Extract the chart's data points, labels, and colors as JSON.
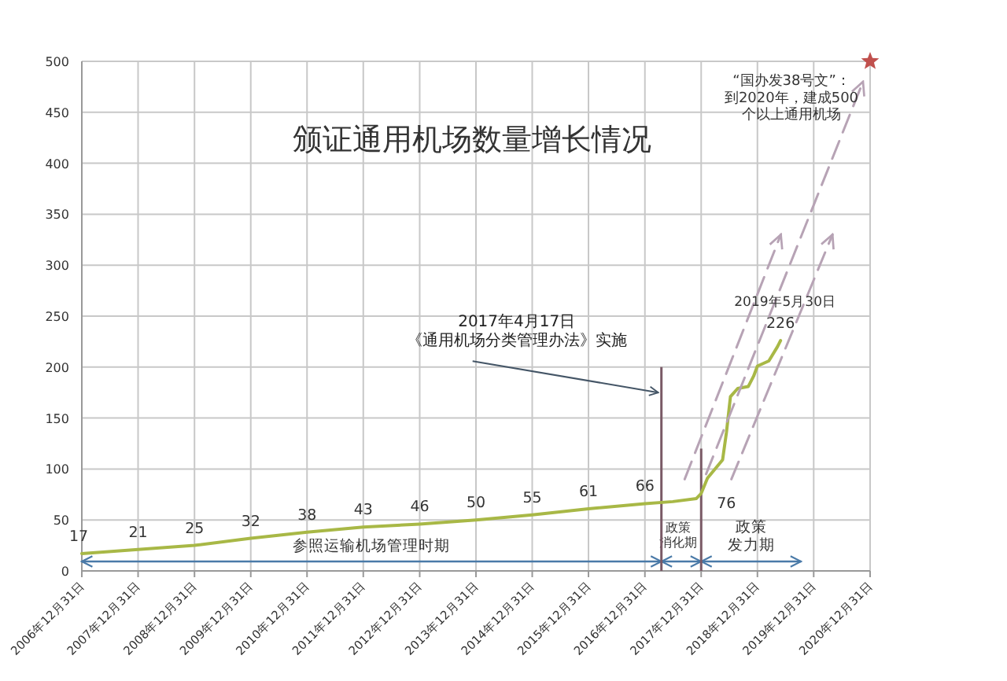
{
  "chart_data": {
    "type": "line",
    "title": "颁证通用机场数量增长情况",
    "x": [
      "2006-12-31",
      "2007-12-31",
      "2008-12-31",
      "2009-12-31",
      "2010-12-31",
      "2011-12-31",
      "2012-12-31",
      "2013-12-31",
      "2014-12-31",
      "2015-12-31",
      "2016-12-31",
      "2017-06-30",
      "2017-11-30",
      "2017-12-31",
      "2018-02-10",
      "2018-05-19",
      "2018-06-13",
      "2018-07-09",
      "2018-08-25",
      "2018-11-02",
      "2018-12-06",
      "2018-12-31",
      "2019-03-15",
      "2019-05-10",
      "2019-05-30"
    ],
    "series": [
      {
        "color": "#a8b846",
        "values": [
          17,
          21,
          25,
          32,
          38,
          43,
          46,
          50,
          55,
          61,
          66,
          68,
          71,
          76,
          91,
          109,
          136,
          171,
          179,
          181,
          191,
          201,
          206,
          220,
          226
        ],
        "value_labels": [
          "17",
          "21",
          "25",
          "32",
          "38",
          "43",
          "46",
          "50",
          "55",
          "61",
          "66",
          null,
          null,
          "76",
          null,
          null,
          null,
          null,
          null,
          null,
          null,
          null,
          null,
          null,
          "226"
        ]
      },
      {
        "type": "line",
        "line_style": "dashed",
        "color": "#b7a3b5",
        "x": [
          "2017-09-15",
          "2019-06-01"
        ],
        "values": [
          90,
          330
        ]
      },
      {
        "type": "line",
        "line_style": "dashed",
        "color": "#b7a3b5",
        "x": [
          "2018-02-01",
          "2020-11-15"
        ],
        "values": [
          95,
          480
        ]
      },
      {
        "type": "line",
        "line_style": "dashed",
        "color": "#b7a3b5",
        "x": [
          "2018-07-15",
          "2020-05-01"
        ],
        "values": [
          90,
          330
        ]
      },
      {
        "type": "scatter",
        "marker": "star",
        "color": "#c0504d",
        "x": [
          "2020-12-31"
        ],
        "values": [
          500
        ]
      }
    ],
    "xlim": [
      "2006-12-31",
      "2020-12-31"
    ],
    "xticks": [
      {
        "value": "2006-12-31",
        "label": "2006年12月31日"
      },
      {
        "value": "2007-12-31",
        "label": "2007年12月31日"
      },
      {
        "value": "2008-12-31",
        "label": "2008年12月31日"
      },
      {
        "value": "2009-12-31",
        "label": "2009年12月31日"
      },
      {
        "value": "2010-12-31",
        "label": "2010年12月31日"
      },
      {
        "value": "2011-12-31",
        "label": "2011年12月31日"
      },
      {
        "value": "2012-12-31",
        "label": "2012年12月31日"
      },
      {
        "value": "2013-12-31",
        "label": "2013年12月31日"
      },
      {
        "value": "2014-12-31",
        "label": "2014年12月31日"
      },
      {
        "value": "2015-12-31",
        "label": "2015年12月31日"
      },
      {
        "value": "2016-12-31",
        "label": "2016年12月31日"
      },
      {
        "value": "2017-12-31",
        "label": "2017年12月31日"
      },
      {
        "value": "2018-12-31",
        "label": "2018年12月31日"
      },
      {
        "value": "2019-12-31",
        "label": "2019年12月31日"
      },
      {
        "value": "2020-12-31",
        "label": "2020年12月31日"
      }
    ],
    "ylim": [
      0,
      500
    ],
    "yticks": [
      0,
      50,
      100,
      150,
      200,
      250,
      300,
      350,
      400,
      450,
      500
    ],
    "grid": true,
    "ref_lines": [
      {
        "axis": "x",
        "value": "2017-04-17",
        "color": "#7a5a66"
      },
      {
        "axis": "x",
        "value": "2017-12-31",
        "color": "#7a5a66"
      }
    ],
    "annotations": [
      {
        "text": "2017年4月17日《通用机场分类管理办法》实施",
        "x": "2017-04-17",
        "y": 175
      },
      {
        "text": "2019年5月30日",
        "x": "2019-05-30",
        "y": 226
      },
      {
        "text": "“国办发38号文”：到2020年，建成500个以上通用机场",
        "x": "2020-12-31",
        "y": 500
      },
      "参照运输机场管理时期",
      "政策消化期",
      "政策发力期"
    ]
  }
}
